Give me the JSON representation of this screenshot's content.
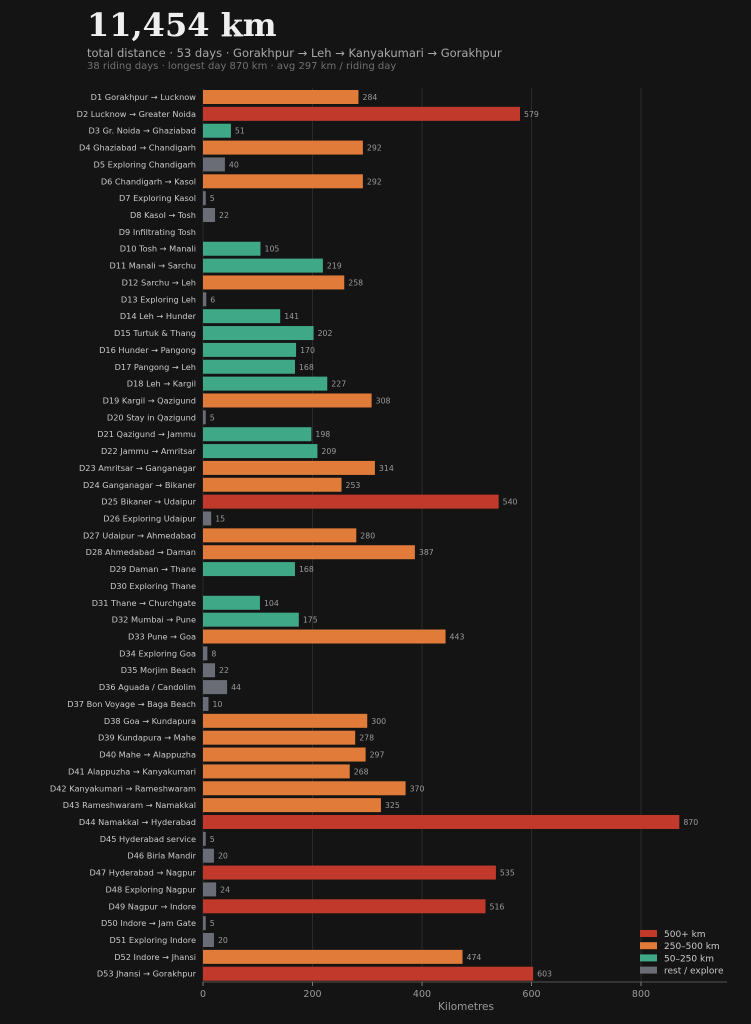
{
  "header": {
    "total": "11,454 km",
    "line1": "total distance  ·  53 days  ·  Gorakhpur → Leh → Kanyakumari → Gorakhpur",
    "line2": "38 riding days  ·  longest day 870 km  ·  avg 297 km / riding day"
  },
  "chart_data": {
    "type": "bar",
    "orientation": "horizontal",
    "xlabel": "Kilometres",
    "xlim": [
      0,
      960
    ],
    "xticks": [
      0,
      200,
      400,
      600,
      800
    ],
    "grid": "vertical",
    "legend_position": "bottom-right",
    "categories": [
      "D1  Gorakhpur → Lucknow",
      "D2  Lucknow → Greater Noida",
      "D3  Gr. Noida → Ghaziabad",
      "D4  Ghaziabad → Chandigarh",
      "D5  Exploring Chandigarh",
      "D6  Chandigarh → Kasol",
      "D7  Exploring Kasol",
      "D8  Kasol → Tosh",
      "D9  Infiltrating Tosh",
      "D10  Tosh → Manali",
      "D11  Manali → Sarchu",
      "D12  Sarchu → Leh",
      "D13  Exploring Leh",
      "D14  Leh → Hunder",
      "D15  Turtuk & Thang",
      "D16  Hunder → Pangong",
      "D17  Pangong → Leh",
      "D18  Leh → Kargil",
      "D19  Kargil → Qazigund",
      "D20  Stay in Qazigund",
      "D21  Qazigund → Jammu",
      "D22  Jammu → Amritsar",
      "D23  Amritsar → Ganganagar",
      "D24  Ganganagar → Bikaner",
      "D25  Bikaner → Udaipur",
      "D26  Exploring Udaipur",
      "D27  Udaipur → Ahmedabad",
      "D28  Ahmedabad → Daman",
      "D29  Daman → Thane",
      "D30  Exploring Thane",
      "D31  Thane → Churchgate",
      "D32  Mumbai → Pune",
      "D33  Pune → Goa",
      "D34  Exploring Goa",
      "D35  Morjim Beach",
      "D36  Aguada / Candolim",
      "D37  Bon Voyage → Baga Beach",
      "D38  Goa → Kundapura",
      "D39  Kundapura → Mahe",
      "D40  Mahe → Alappuzha",
      "D41  Alappuzha → Kanyakumari",
      "D42  Kanyakumari → Rameshwaram",
      "D43  Rameshwaram → Namakkal",
      "D44  Namakkal → Hyderabad",
      "D45  Hyderabad service",
      "D46  Birla Mandir",
      "D47  Hyderabad → Nagpur",
      "D48  Exploring Nagpur",
      "D49  Nagpur → Indore",
      "D50  Indore → Jam Gate",
      "D51  Exploring Indore",
      "D52  Indore → Jhansi",
      "D53  Jhansi → Gorakhpur"
    ],
    "values": [
      284,
      579,
      51,
      292,
      40,
      292,
      5,
      22,
      0,
      105,
      219,
      258,
      6,
      141,
      202,
      170,
      168,
      227,
      308,
      5,
      198,
      209,
      314,
      253,
      540,
      15,
      280,
      387,
      168,
      0,
      104,
      175,
      443,
      8,
      22,
      44,
      10,
      300,
      278,
      297,
      268,
      370,
      325,
      870,
      5,
      20,
      535,
      24,
      516,
      5,
      20,
      474,
      603
    ],
    "legend": [
      {
        "label": "500+ km",
        "color": "#c0392b"
      },
      {
        "label": "250–500 km",
        "color": "#e07b39"
      },
      {
        "label": "50–250 km",
        "color": "#3fa886"
      },
      {
        "label": "rest / explore",
        "color": "#6b6d76"
      }
    ]
  }
}
